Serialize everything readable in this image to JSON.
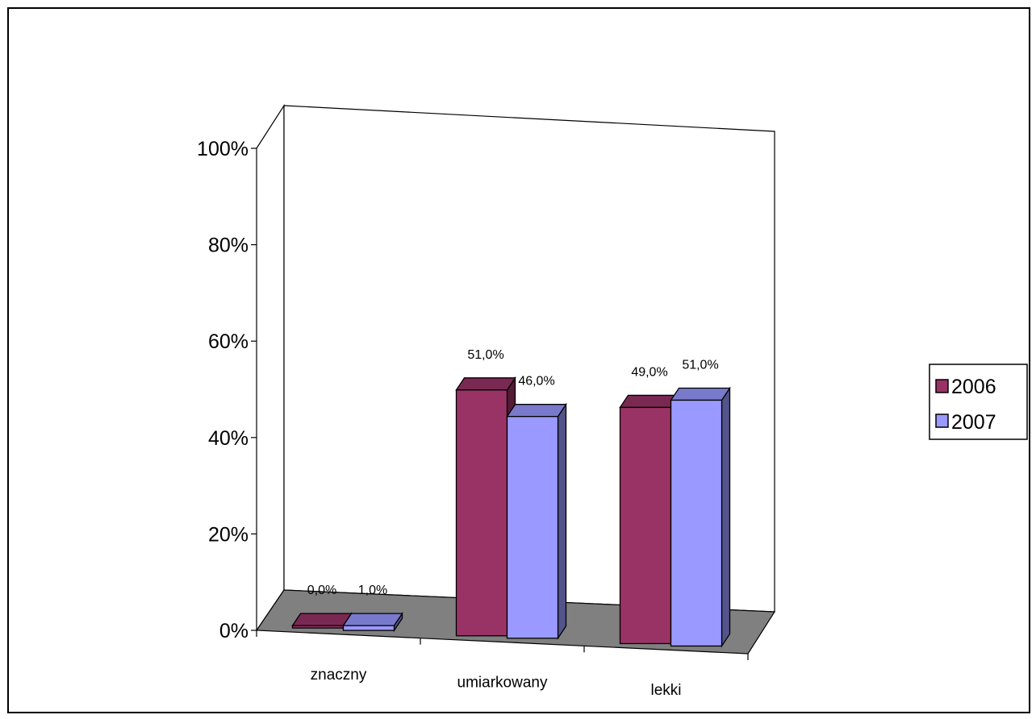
{
  "chart_data": {
    "type": "bar",
    "variant": "3d-clustered-column",
    "title": "",
    "xlabel": "",
    "ylabel": "",
    "categories": [
      "znaczny",
      "umiarkowany",
      "lekki"
    ],
    "series": [
      {
        "name": "2006",
        "values": [
          0.0,
          51.0,
          49.0
        ],
        "labels": [
          "0,0%",
          "51,0%",
          "49,0%"
        ],
        "color": "#993366"
      },
      {
        "name": "2007",
        "values": [
          1.0,
          46.0,
          51.0
        ],
        "labels": [
          "1,0%",
          "46,0%",
          "51,0%"
        ],
        "color": "#9999FF"
      }
    ],
    "ylim": [
      0,
      100
    ],
    "yticks": [
      "0%",
      "20%",
      "40%",
      "60%",
      "80%",
      "100%"
    ],
    "grid": false,
    "legend_position": "right",
    "floor_color": "#808080"
  }
}
